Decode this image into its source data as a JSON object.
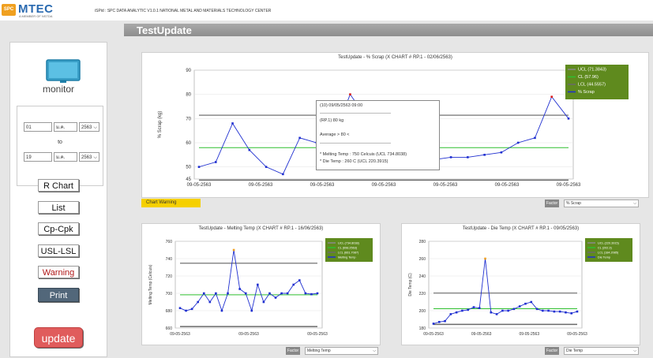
{
  "header": {
    "logo_text": "MTEC",
    "logo_sub": "A MEMBER OF NSTDA",
    "spc_badge": "SPC",
    "caption": "iSPid : SPC DATA ANALYTIC V1.0.1 NATIONAL METAL AND MATERIALS TECHNOLOGY CENTER"
  },
  "page": {
    "title": "TestUpdate"
  },
  "sidebar": {
    "monitor_label": "monitor",
    "from_day": "01",
    "from_month": "ม.ค.",
    "from_year": "2563",
    "to_label": "to",
    "to_day": "19",
    "to_month": "ม.ค.",
    "to_year": "2563",
    "buttons": {
      "r_chart": "R Chart",
      "list": "List",
      "cp_cpk": "Cp-Cpk",
      "usl_lsl": "USL-LSL",
      "warning": "Warning",
      "print": "Print",
      "update": "update"
    }
  },
  "main_chart": {
    "warning_chip": "Chart Warning",
    "factor_label": "Factor",
    "factor_value": "% Scrap",
    "tooltip": {
      "line1": "(10) 09/05/2563 09:00",
      "line2": "(RP.1) 80 kg",
      "line3": "Average > 80 <",
      "line4": "* Melting Temp : 750 Celcuis   (UCL 734.8038)",
      "line5": "* Die Temp : 260 C   (UCL 220.3915)"
    }
  },
  "melt_chart": {
    "factor_label": "Factor",
    "factor_value": "Melting Temp"
  },
  "die_chart": {
    "factor_label": "Factor",
    "factor_value": "Die Temp"
  },
  "colors": {
    "series": "#1f2fd0",
    "ucl": "#8a8a8a",
    "cl": "#2fbf2f",
    "lcl": "#6a6a6a",
    "legend_bg": "#5f8a1e",
    "outlier": "#d81818",
    "warn_point": "#f0a020"
  },
  "chart_data": [
    {
      "type": "line",
      "title": "TestUpdate - % Scrap (X CHART # RP.1 - 02/06/2563)",
      "ylabel": "% Scrap (kg)",
      "xlabel": "",
      "ylim": [
        45,
        90
      ],
      "yticks": [
        45,
        50,
        60,
        70,
        80,
        90
      ],
      "xtick_labels": [
        "09-05-2563",
        "09-05-2563",
        "09-05-2563",
        "09-05-2563",
        "09-05-2563",
        "09-05-2563",
        "09-05-2563"
      ],
      "limits": {
        "ucl": 71.3843,
        "cl": 57.96,
        "lcl": 44.5557
      },
      "legend": [
        "UCL (71.3843)",
        "CL (57.96)",
        "LCL (44.5557)",
        "% Scrap"
      ],
      "legend_position": "top-right",
      "series": [
        {
          "name": "% Scrap",
          "values": [
            50,
            52,
            68,
            57,
            50,
            47,
            62,
            60,
            62,
            80,
            70,
            64,
            57,
            54,
            53,
            54,
            54,
            55,
            56,
            60,
            62,
            79,
            70
          ]
        }
      ]
    },
    {
      "type": "line",
      "title": "TestUpdate - Melting Temp (X CHART # RP.1 - 16/06/2563)",
      "ylabel": "Melting Temp (Celcuis)",
      "xlabel": "",
      "ylim": [
        660,
        760
      ],
      "yticks": [
        660,
        680,
        700,
        720,
        740,
        760
      ],
      "xtick_labels": [
        "09-05-2563",
        "09-05-2563",
        "09-05-2563"
      ],
      "limits": {
        "ucl": 734.8038,
        "cl": 698.2563,
        "lcl": 661.7087
      },
      "legend": [
        "UCL (734.8038)",
        "CL (698.2563)",
        "LCL (661.7087)",
        "Melting Temp"
      ],
      "legend_position": "top-right",
      "series": [
        {
          "name": "Melting Temp",
          "values": [
            683,
            680,
            682,
            690,
            700,
            690,
            700,
            680,
            700,
            750,
            705,
            700,
            680,
            710,
            690,
            700,
            695,
            700,
            700,
            710,
            715,
            700,
            699,
            700
          ]
        }
      ]
    },
    {
      "type": "line",
      "title": "TestUpdate - Die Temp (X CHART # RP.1 - 09/05/2563)",
      "ylabel": "Die Temp (C)",
      "xlabel": "",
      "ylim": [
        180,
        280
      ],
      "yticks": [
        180,
        200,
        220,
        240,
        260,
        280
      ],
      "xtick_labels": [
        "09-05-2563",
        "09-05-2563",
        "09-05-2563",
        "09-05-2563"
      ],
      "limits": {
        "ucl": 220.3915,
        "cl": 202.3,
        "lcl": 184.2085
      },
      "legend": [
        "UCL (220.3915)",
        "CL (202.3)",
        "LCL (184.2085)",
        "Die Temp"
      ],
      "legend_position": "top-right",
      "series": [
        {
          "name": "Die Temp",
          "values": [
            185,
            187,
            188,
            196,
            198,
            200,
            201,
            204,
            203,
            260,
            198,
            196,
            200,
            200,
            202,
            205,
            208,
            210,
            202,
            200,
            200,
            199,
            199,
            198,
            197,
            199
          ]
        }
      ]
    }
  ]
}
